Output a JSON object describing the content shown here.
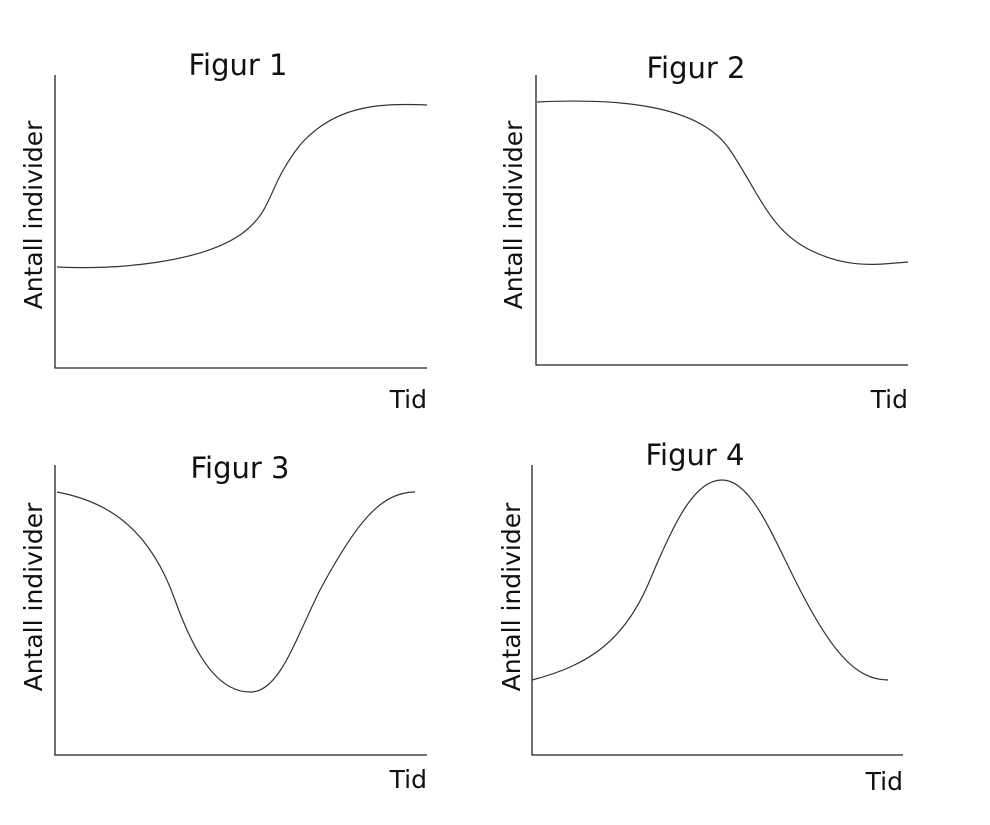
{
  "figures": [
    {
      "title": "Figur 1",
      "y_label": "Antall individer",
      "x_label": "Tid"
    },
    {
      "title": "Figur 2",
      "y_label": "Antall individer",
      "x_label": "Tid"
    },
    {
      "title": "Figur 3",
      "y_label": "Antall individer",
      "x_label": "Tid"
    },
    {
      "title": "Figur 4",
      "y_label": "Antall individer",
      "x_label": "Tid"
    }
  ]
}
